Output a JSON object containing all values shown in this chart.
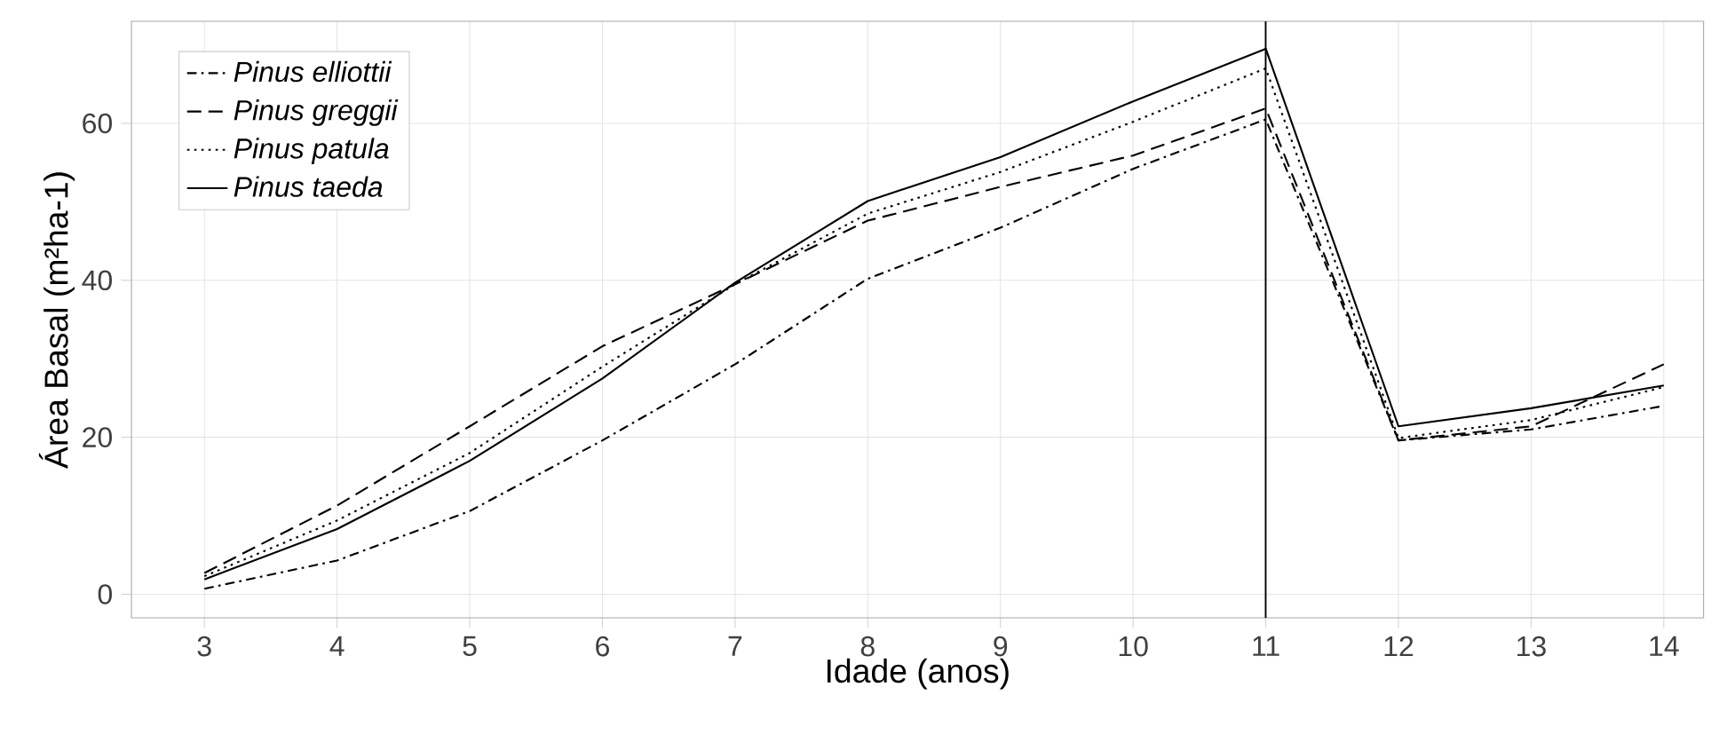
{
  "chart_data": {
    "type": "line",
    "xlabel": "Idade (anos)",
    "ylabel": "Área Basal (m²ha-1)",
    "x": [
      3,
      4,
      5,
      6,
      7,
      8,
      9,
      10,
      11,
      12,
      13,
      14
    ],
    "series": [
      {
        "name": "Pinus elliottii",
        "color": "#000000",
        "line_style": "dashdot",
        "values": [
          0.7,
          4.3,
          10.6,
          19.6,
          29.3,
          40.2,
          46.7,
          54.2,
          60.5,
          19.6,
          21,
          24
        ]
      },
      {
        "name": "Pinus greggii",
        "color": "#000000",
        "line_style": "dashed",
        "values": [
          2.7,
          11.3,
          21.4,
          31.6,
          39.5,
          47.6,
          51.9,
          55.9,
          61.9,
          19.6,
          21.4,
          29.3
        ]
      },
      {
        "name": "Pinus patula",
        "color": "#000000",
        "line_style": "dotted",
        "values": [
          2.3,
          9.4,
          18,
          29,
          39.5,
          48.5,
          53.8,
          60.2,
          67,
          19.9,
          22.2,
          26.4
        ]
      },
      {
        "name": "Pinus taeda",
        "color": "#000000",
        "line_style": "solid",
        "values": [
          1.9,
          8.3,
          17,
          27.5,
          39.7,
          50.1,
          55.7,
          62.8,
          69.5,
          21.4,
          23.7,
          26.6
        ]
      }
    ],
    "xlim": [
      2.45,
      14.3
    ],
    "ylim": [
      -3,
      73
    ],
    "xticks": [
      3,
      4,
      5,
      6,
      7,
      8,
      9,
      10,
      11,
      12,
      13,
      14
    ],
    "yticks": [
      0,
      20,
      40,
      60
    ],
    "ref_lines": [
      {
        "axis": "x",
        "value": 11,
        "color": "#000000"
      }
    ],
    "grid": true,
    "legend": "top left",
    "marker": "none"
  }
}
